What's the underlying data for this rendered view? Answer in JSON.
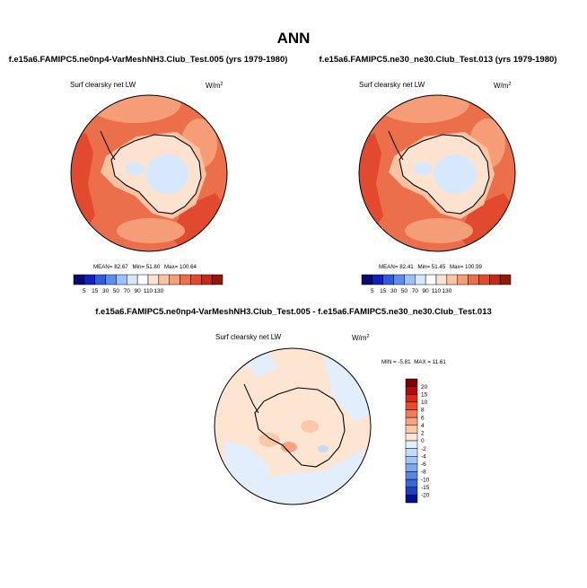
{
  "chart_data": [
    {
      "type": "heatmap",
      "projection": "south-polar-stereographic",
      "title": "ANN",
      "case": "f.e15a6.FAMIPC5.ne0np4-VarMeshNH3.Club_Test.005 (yrs 1979-1980)",
      "variable": "Surf clearsky net LW",
      "units": "W/m",
      "units_exp": "2",
      "stats": {
        "mean_label": "MEAN=",
        "mean": "82.67",
        "min_label": "Min=",
        "min": "51.80",
        "max_label": "Max=",
        "max": "100.64"
      },
      "colorbar": {
        "orientation": "horizontal",
        "levels": [
          "5",
          "15",
          "30",
          "50",
          "70",
          "90",
          "110",
          "130"
        ],
        "colors": [
          "#0a0a6e",
          "#1020c0",
          "#2f5bdc",
          "#5b8cf0",
          "#9cc0f8",
          "#d8e8fc",
          "#ffffff",
          "#fde3cf",
          "#fbc3a3",
          "#f59d76",
          "#ec6f4c",
          "#e24a2f",
          "#c42a18",
          "#8e1a0c"
        ]
      }
    },
    {
      "type": "heatmap",
      "projection": "south-polar-stereographic",
      "case": "f.e15a6.FAMIPC5.ne30_ne30.Club_Test.013 (yrs 1979-1980)",
      "variable": "Surf clearsky net LW",
      "units": "W/m",
      "units_exp": "2",
      "stats": {
        "mean_label": "MEAN=",
        "mean": "82.41",
        "min_label": "Min=",
        "min": "51.45",
        "max_label": "Max=",
        "max": "100.99"
      },
      "colorbar": {
        "orientation": "horizontal",
        "levels": [
          "5",
          "15",
          "30",
          "50",
          "70",
          "90",
          "110",
          "130"
        ],
        "colors": [
          "#0a0a6e",
          "#1020c0",
          "#2f5bdc",
          "#5b8cf0",
          "#9cc0f8",
          "#d8e8fc",
          "#ffffff",
          "#fde3cf",
          "#fbc3a3",
          "#f59d76",
          "#ec6f4c",
          "#e24a2f",
          "#c42a18",
          "#8e1a0c"
        ]
      }
    },
    {
      "type": "heatmap",
      "projection": "south-polar-stereographic",
      "case": "f.e15a6.FAMIPC5.ne0np4-VarMeshNH3.Club_Test.005 - f.e15a6.FAMIPC5.ne30_ne30.Club_Test.013",
      "variable": "Surf clearsky net LW",
      "units": "W/m",
      "units_exp": "2",
      "stats": {
        "min_label": "MIN =",
        "min": "-5.81",
        "max_label": "MAX =",
        "max": "11.61"
      },
      "colorbar": {
        "orientation": "vertical",
        "levels": [
          "20",
          "15",
          "10",
          "8",
          "6",
          "4",
          "2",
          "0",
          "-2",
          "-4",
          "-6",
          "-8",
          "-10",
          "-15",
          "-20"
        ],
        "colors": [
          "#7f0000",
          "#b00d0d",
          "#d82a1a",
          "#ef4a2a",
          "#f57a55",
          "#f9a382",
          "#fcc8aa",
          "#fde5d2",
          "#e3eefc",
          "#c4dcfa",
          "#a3c4f5",
          "#80a6ee",
          "#5a86e6",
          "#3a64d8",
          "#1b3fc0",
          "#001090"
        ]
      }
    }
  ]
}
